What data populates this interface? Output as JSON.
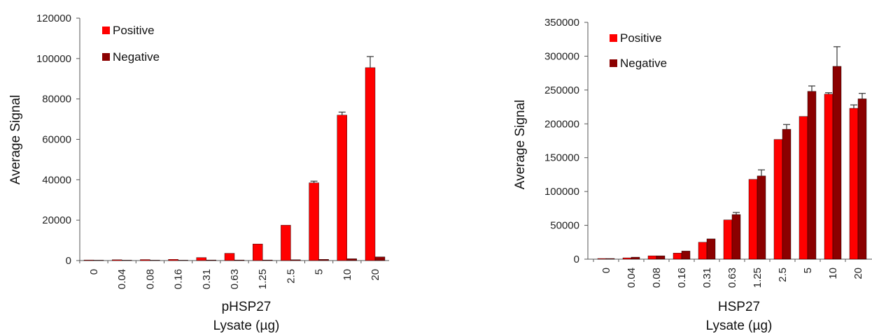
{
  "colors": {
    "positive": "#ff0000",
    "negative": "#8b0000",
    "axis": "#555555",
    "error_bar": "#333333"
  },
  "chart_data": [
    {
      "type": "bar",
      "title": "",
      "xlabel_line1": "pHSP27",
      "xlabel_line2": "Lysate (µg)",
      "ylabel": "Average Signal",
      "ylim": [
        0,
        120000
      ],
      "yticks": [
        0,
        20000,
        40000,
        60000,
        80000,
        100000,
        120000
      ],
      "categories": [
        "0",
        "0.04",
        "0.08",
        "0.16",
        "0.31",
        "0.63",
        "1.25",
        "2.5",
        "5",
        "10",
        "20"
      ],
      "legend": {
        "position": "top-left"
      },
      "series": [
        {
          "name": "Positive",
          "values": [
            300,
            400,
            500,
            600,
            1500,
            3600,
            8200,
            17500,
            38500,
            72000,
            95500
          ],
          "errors": [
            0,
            0,
            0,
            0,
            0,
            0,
            0,
            0,
            800,
            1500,
            5500
          ]
        },
        {
          "name": "Negative",
          "values": [
            200,
            200,
            200,
            200,
            300,
            300,
            300,
            400,
            600,
            900,
            1800
          ],
          "errors": [
            0,
            0,
            0,
            0,
            0,
            0,
            0,
            0,
            0,
            0,
            0
          ]
        }
      ]
    },
    {
      "type": "bar",
      "title": "",
      "xlabel_line1": "HSP27",
      "xlabel_line2": "Lysate (µg)",
      "ylabel": "Average Signal",
      "ylim": [
        0,
        350000
      ],
      "yticks": [
        0,
        50000,
        100000,
        150000,
        200000,
        250000,
        300000,
        350000
      ],
      "categories": [
        "0",
        "0.04",
        "0.08",
        "0.16",
        "0.31",
        "0.63",
        "1.25",
        "2.5",
        "5",
        "10",
        "20"
      ],
      "legend": {
        "position": "top-left"
      },
      "series": [
        {
          "name": "Positive",
          "values": [
            1000,
            2000,
            5000,
            9000,
            25000,
            58000,
            118000,
            177000,
            211000,
            244000,
            223000
          ],
          "errors": [
            0,
            0,
            0,
            0,
            0,
            0,
            0,
            0,
            0,
            2000,
            5000
          ]
        },
        {
          "name": "Negative",
          "values": [
            1000,
            3000,
            5000,
            12000,
            30000,
            66000,
            123000,
            192000,
            248000,
            285000,
            237000
          ],
          "errors": [
            0,
            0,
            0,
            0,
            0,
            3000,
            9000,
            7000,
            8000,
            29000,
            8000
          ]
        }
      ]
    }
  ]
}
